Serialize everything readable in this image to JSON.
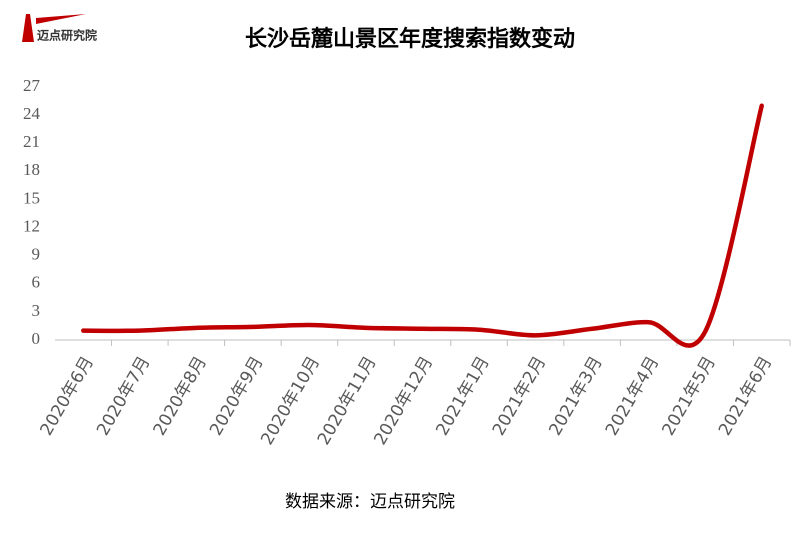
{
  "logo": {
    "text": "迈点研究院"
  },
  "chart_data": {
    "type": "line",
    "title": "长沙岳麓山景区年度搜索指数变动",
    "categories": [
      "2020年6月",
      "2020年7月",
      "2020年8月",
      "2020年9月",
      "2020年10月",
      "2020年11月",
      "2020年12月",
      "2021年1月",
      "2021年2月",
      "2021年3月",
      "2021年4月",
      "2021年5月",
      "2021年6月"
    ],
    "values": [
      1,
      1,
      1.3,
      1.4,
      1.6,
      1.3,
      1.2,
      1.1,
      0.5,
      1.2,
      1.9,
      0.9,
      25
    ],
    "color": "#c00000",
    "ylim": [
      0,
      27
    ],
    "yticks": [
      0,
      3,
      6,
      9,
      12,
      15,
      18,
      21,
      24,
      27
    ],
    "note": "数据来源：迈点研究院"
  }
}
